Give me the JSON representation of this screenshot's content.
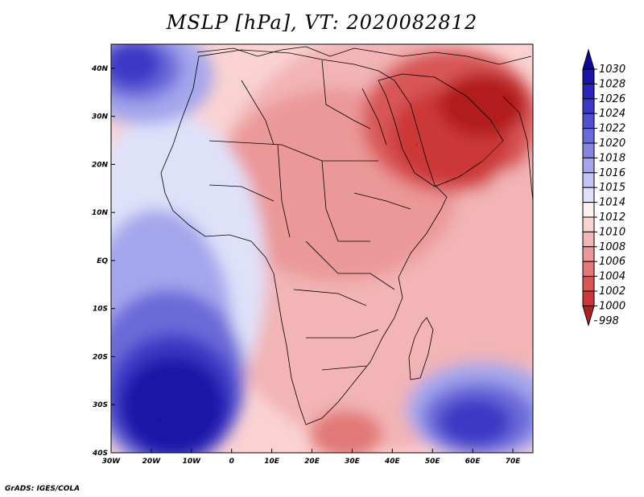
{
  "title": "MSLP [hPa], VT: 2020082812",
  "footer": "GrADS: IGES/COLA",
  "map": {
    "lon_range": [
      -30,
      75
    ],
    "lat_range": [
      -40,
      45
    ],
    "lon_ticks": [
      {
        "value": -30,
        "label": "30W"
      },
      {
        "value": -20,
        "label": "20W"
      },
      {
        "value": -10,
        "label": "10W"
      },
      {
        "value": 0,
        "label": "0"
      },
      {
        "value": 10,
        "label": "10E"
      },
      {
        "value": 20,
        "label": "20E"
      },
      {
        "value": 30,
        "label": "30E"
      },
      {
        "value": 40,
        "label": "40E"
      },
      {
        "value": 50,
        "label": "50E"
      },
      {
        "value": 60,
        "label": "60E"
      },
      {
        "value": 70,
        "label": "70E"
      }
    ],
    "lat_ticks": [
      {
        "value": 40,
        "label": "40N"
      },
      {
        "value": 30,
        "label": "30N"
      },
      {
        "value": 20,
        "label": "20N"
      },
      {
        "value": 10,
        "label": "10N"
      },
      {
        "value": 0,
        "label": "EQ"
      },
      {
        "value": -10,
        "label": "10S"
      },
      {
        "value": -20,
        "label": "20S"
      },
      {
        "value": -30,
        "label": "30S"
      },
      {
        "value": -40,
        "label": "40S"
      }
    ]
  },
  "colorbar": {
    "levels": [
      {
        "label": "1030",
        "color": "#0e0694"
      },
      {
        "label": "1028",
        "color": "#1a14a8"
      },
      {
        "label": "1026",
        "color": "#2a24b8"
      },
      {
        "label": "1024",
        "color": "#3c38c6"
      },
      {
        "label": "1022",
        "color": "#5250d0"
      },
      {
        "label": "1020",
        "color": "#6a6ad9"
      },
      {
        "label": "1018",
        "color": "#8686e2"
      },
      {
        "label": "1016",
        "color": "#a4a6ec"
      },
      {
        "label": "1015",
        "color": "#c2c4f3"
      },
      {
        "label": "1014",
        "color": "#dfe1f9"
      },
      {
        "label": "1012",
        "color": "#fff0f0"
      },
      {
        "label": "1010",
        "color": "#fad2d2"
      },
      {
        "label": "1008",
        "color": "#f2b4b4"
      },
      {
        "label": "1006",
        "color": "#eb9898"
      },
      {
        "label": "1004",
        "color": "#e27878"
      },
      {
        "label": "1002",
        "color": "#d85656"
      },
      {
        "label": "1000",
        "color": "#cc3838"
      },
      {
        "label": "998",
        "color": "#b31f1f"
      }
    ]
  },
  "pressure_systems": [
    {
      "name": "north-atlantic-high",
      "lon": -25,
      "lat": 40,
      "level": "1024"
    },
    {
      "name": "south-atlantic-high",
      "lon": -18,
      "lat": -33,
      "level": "1030"
    },
    {
      "name": "indian-ocean-high",
      "lon": 60,
      "lat": -33,
      "level": "1024"
    },
    {
      "name": "arabian-heat-low",
      "lon": 46,
      "lat": 24,
      "level": "998"
    },
    {
      "name": "iran-heat-low",
      "lon": 60,
      "lat": 32,
      "level": "998"
    }
  ]
}
